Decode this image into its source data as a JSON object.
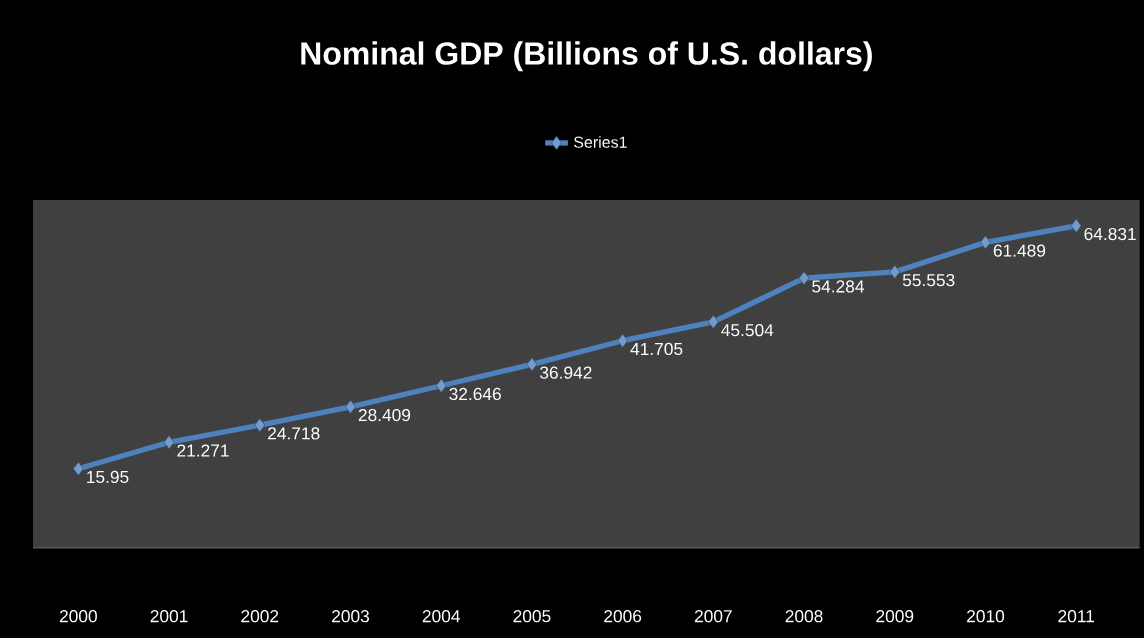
{
  "chart_data": {
    "type": "line",
    "title": "Nominal GDP (Billions of U.S. dollars)",
    "categories": [
      "2000",
      "2001",
      "2002",
      "2003",
      "2004",
      "2005",
      "2006",
      "2007",
      "2008",
      "2009",
      "2010",
      "2011"
    ],
    "series": [
      {
        "name": "Series1",
        "color": "#4f81bd",
        "values": [
          15.95,
          21.271,
          24.718,
          28.409,
          32.646,
          36.942,
          41.705,
          45.504,
          54.284,
          55.553,
          61.489,
          64.831
        ]
      }
    ],
    "data_labels": true,
    "legend": "top",
    "marker": "diamond"
  }
}
